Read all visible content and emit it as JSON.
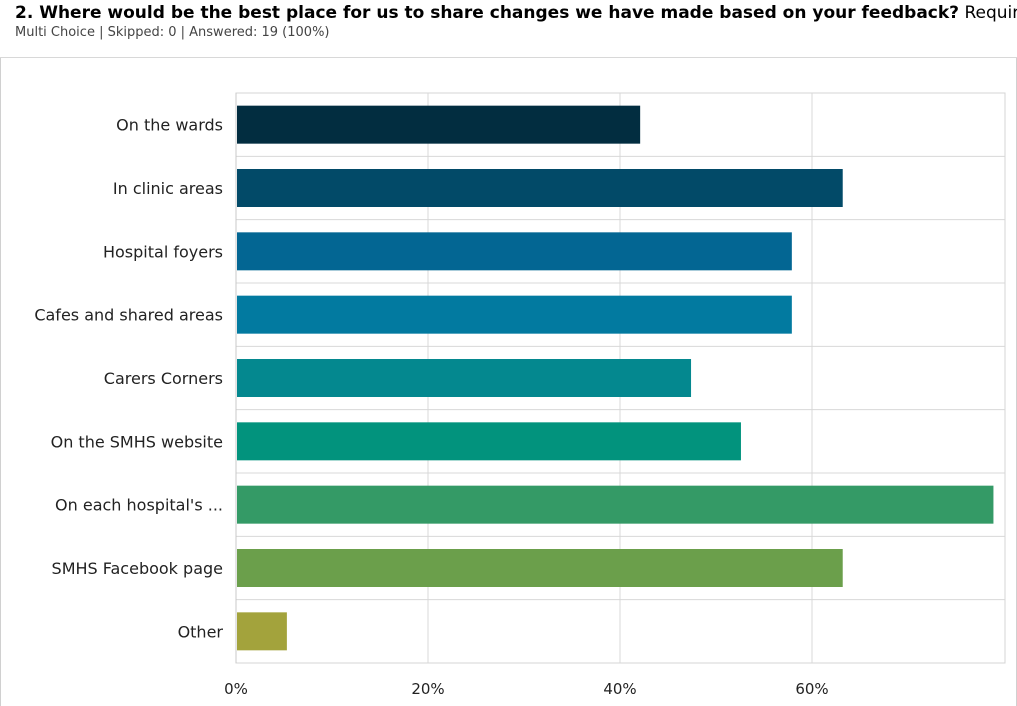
{
  "question": {
    "title": "2. Where would be the best place for us to share changes we have made based on your feedback?",
    "required_label": "Required",
    "meta": "Multi Choice | Skipped: 0 | Answered: 19 (100%)"
  },
  "chart_data": {
    "type": "bar",
    "orientation": "horizontal",
    "categories": [
      "On the wards",
      "In clinic areas",
      "Hospital foyers",
      "Cafes and shared areas",
      "Carers Corners",
      "On the SMHS website",
      "On each hospital's ...",
      "SMHS Facebook page",
      "Other"
    ],
    "values": [
      42.1,
      63.2,
      57.9,
      57.9,
      47.4,
      52.6,
      78.9,
      63.2,
      5.3
    ],
    "value_unit": "%",
    "colors": [
      "#022d40",
      "#024a68",
      "#036693",
      "#027aa0",
      "#04888f",
      "#02937d",
      "#349a66",
      "#6b9f4b",
      "#a3a33c"
    ],
    "xticks": [
      "0%",
      "20%",
      "40%",
      "60%"
    ],
    "xtick_values": [
      0,
      20,
      40,
      60
    ],
    "xlim": [
      0,
      80
    ],
    "grid": true
  }
}
